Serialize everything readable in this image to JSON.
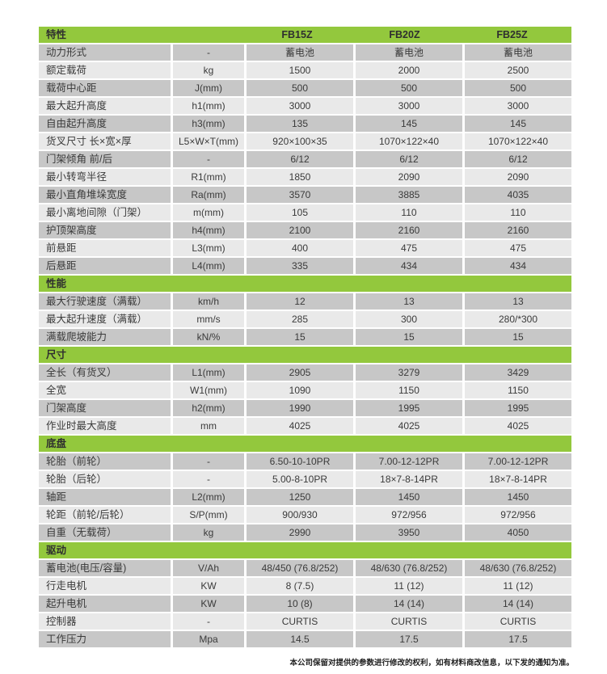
{
  "colors": {
    "accent_green": "#93c83d",
    "row_dark": "#c7c7c7",
    "row_light": "#e9e9e9",
    "text": "#3a3a3a"
  },
  "table": {
    "header": {
      "title": "特性",
      "unit_header": "",
      "models": [
        "FB15Z",
        "FB20Z",
        "FB25Z"
      ]
    },
    "sections": [
      {
        "title": "",
        "rows": [
          {
            "label": "动力形式",
            "unit": "-",
            "values": [
              "蓄电池",
              "蓄电池",
              "蓄电池"
            ]
          },
          {
            "label": "额定载荷",
            "unit": "kg",
            "values": [
              "1500",
              "2000",
              "2500"
            ]
          },
          {
            "label": "载荷中心距",
            "unit": "J(mm)",
            "values": [
              "500",
              "500",
              "500"
            ]
          },
          {
            "label": "最大起升高度",
            "unit": "h1(mm)",
            "values": [
              "3000",
              "3000",
              "3000"
            ]
          },
          {
            "label": "自由起升高度",
            "unit": "h3(mm)",
            "values": [
              "135",
              "145",
              "145"
            ]
          },
          {
            "label": "货叉尺寸 长×宽×厚",
            "unit": "L5×W×T(mm)",
            "values": [
              "920×100×35",
              "1070×122×40",
              "1070×122×40"
            ]
          },
          {
            "label": "门架倾角 前/后",
            "unit": "-",
            "values": [
              "6/12",
              "6/12",
              "6/12"
            ]
          },
          {
            "label": "最小转弯半径",
            "unit": "R1(mm)",
            "values": [
              "1850",
              "2090",
              "2090"
            ]
          },
          {
            "label": "最小直角堆垛宽度",
            "unit": "Ra(mm)",
            "values": [
              "3570",
              "3885",
              "4035"
            ]
          },
          {
            "label": "最小离地间隙（门架）",
            "unit": "m(mm)",
            "values": [
              "105",
              "110",
              "110"
            ]
          },
          {
            "label": "护顶架高度",
            "unit": "h4(mm)",
            "values": [
              "2100",
              "2160",
              "2160"
            ]
          },
          {
            "label": "前悬距",
            "unit": "L3(mm)",
            "values": [
              "400",
              "475",
              "475"
            ]
          },
          {
            "label": "后悬距",
            "unit": "L4(mm)",
            "values": [
              "335",
              "434",
              "434"
            ]
          }
        ]
      },
      {
        "title": "性能",
        "rows": [
          {
            "label": "最大行驶速度（满载）",
            "unit": "km/h",
            "values": [
              "12",
              "13",
              "13"
            ]
          },
          {
            "label": "最大起升速度（满载）",
            "unit": "mm/s",
            "values": [
              "285",
              "300",
              "280/*300"
            ]
          },
          {
            "label": "满载爬坡能力",
            "unit": "kN/%",
            "values": [
              "15",
              "15",
              "15"
            ]
          }
        ]
      },
      {
        "title": "尺寸",
        "rows": [
          {
            "label": "全长（有货叉）",
            "unit": "L1(mm)",
            "values": [
              "2905",
              "3279",
              "3429"
            ]
          },
          {
            "label": "全宽",
            "unit": "W1(mm)",
            "values": [
              "1090",
              "1150",
              "1150"
            ]
          },
          {
            "label": "门架高度",
            "unit": "h2(mm)",
            "values": [
              "1990",
              "1995",
              "1995"
            ]
          },
          {
            "label": "作业时最大高度",
            "unit": "mm",
            "values": [
              "4025",
              "4025",
              "4025"
            ]
          }
        ]
      },
      {
        "title": "底盘",
        "rows": [
          {
            "label": "轮胎（前轮）",
            "unit": "-",
            "values": [
              "6.50-10-10PR",
              "7.00-12-12PR",
              "7.00-12-12PR"
            ]
          },
          {
            "label": "轮胎（后轮）",
            "unit": "-",
            "values": [
              "5.00-8-10PR",
              "18×7-8-14PR",
              "18×7-8-14PR"
            ]
          },
          {
            "label": "轴距",
            "unit": "L2(mm)",
            "values": [
              "1250",
              "1450",
              "1450"
            ]
          },
          {
            "label": "轮距（前轮/后轮）",
            "unit": "S/P(mm)",
            "values": [
              "900/930",
              "972/956",
              "972/956"
            ]
          },
          {
            "label": "自重（无载荷）",
            "unit": "kg",
            "values": [
              "2990",
              "3950",
              "4050"
            ]
          }
        ]
      },
      {
        "title": "驱动",
        "rows": [
          {
            "label": "蓄电池(电压/容量)",
            "unit": "V/Ah",
            "values": [
              "48/450 (76.8/252)",
              "48/630 (76.8/252)",
              "48/630 (76.8/252)"
            ]
          },
          {
            "label": "行走电机",
            "unit": "KW",
            "values": [
              "8 (7.5)",
              "11 (12)",
              "11 (12)"
            ]
          },
          {
            "label": "起升电机",
            "unit": "KW",
            "values": [
              "10 (8)",
              "14 (14)",
              "14 (14)"
            ]
          },
          {
            "label": "控制器",
            "unit": "-",
            "values": [
              "CURTIS",
              "CURTIS",
              "CURTIS"
            ]
          },
          {
            "label": "工作压力",
            "unit": "Mpa",
            "values": [
              "14.5",
              "17.5",
              "17.5"
            ]
          }
        ]
      }
    ]
  },
  "footer": {
    "disclaimer": "本公司保留对提供的参数进行修改的权利，如有材料商改信息，以下发的通知为准。"
  }
}
